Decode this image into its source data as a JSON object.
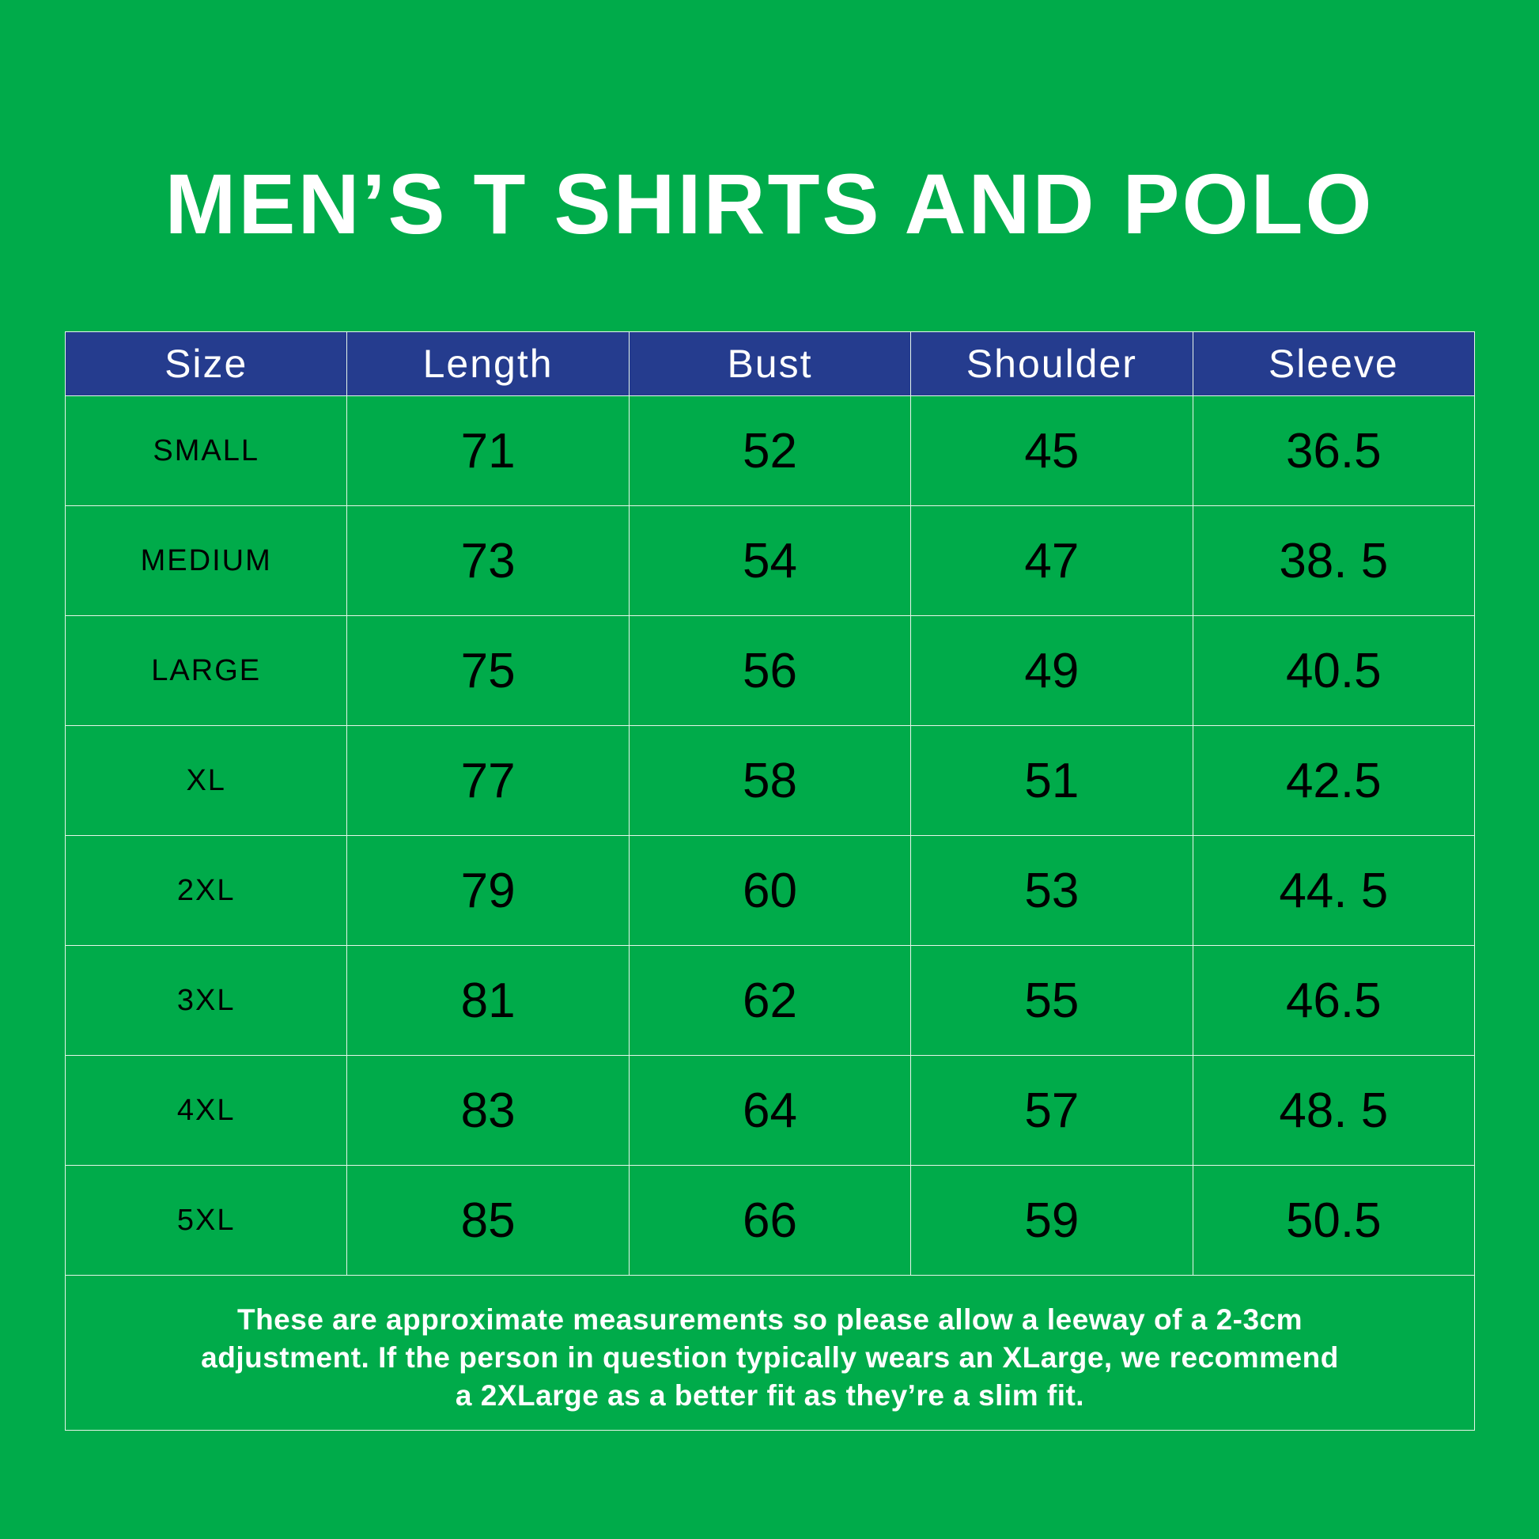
{
  "title": "MEN’S T SHIRTS AND POLO",
  "table": {
    "header": [
      "Size",
      "Length",
      "Bust",
      "Shoulder",
      "Sleeve"
    ],
    "rows": [
      [
        "SMALL",
        "71",
        "52",
        "45",
        "36.5"
      ],
      [
        "MEDIUM",
        "73",
        "54",
        "47",
        "38. 5"
      ],
      [
        "LARGE",
        "75",
        "56",
        "49",
        "40.5"
      ],
      [
        "XL",
        "77",
        "58",
        "51",
        "42.5"
      ],
      [
        "2XL",
        "79",
        "60",
        "53",
        "44. 5"
      ],
      [
        "3XL",
        "81",
        "62",
        "55",
        "46.5"
      ],
      [
        "4XL",
        "83",
        "64",
        "57",
        "48. 5"
      ],
      [
        "5XL",
        "85",
        "66",
        "59",
        "50.5"
      ]
    ],
    "note": [
      "These are approximate measurements so please allow a leeway of a 2-3cm",
      "adjustment. If the person in question typically wears an XLarge, we recommend",
      "a 2XLarge as a better fit as they’re a slim fit."
    ]
  }
}
